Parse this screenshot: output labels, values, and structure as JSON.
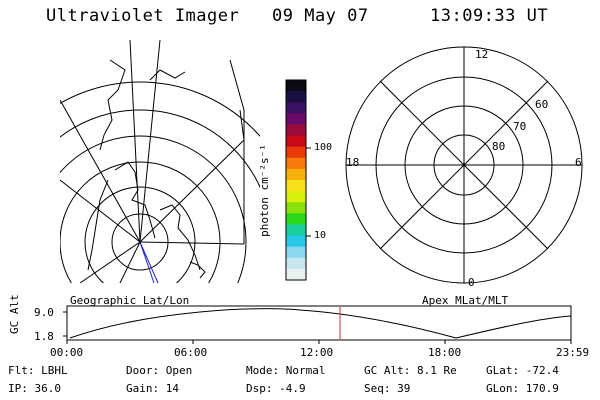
{
  "header": {
    "title": "Ultraviolet Imager",
    "date": "09 May 07",
    "time": "13:09:33 UT"
  },
  "colorbar": {
    "unit_label": "photon cm⁻²s⁻¹",
    "ticks": [
      "100",
      "10"
    ],
    "colors": [
      "#0a0a14",
      "#1a1040",
      "#3a1060",
      "#6a0a6a",
      "#9a0a3a",
      "#c80a1a",
      "#e83a0a",
      "#f87a0a",
      "#f8b00a",
      "#f8e01a",
      "#d8f00a",
      "#8ae00a",
      "#2ad81a",
      "#1ad0a0",
      "#2ac8e8",
      "#8ad8f0",
      "#c8e8f0",
      "#e8f0f0"
    ]
  },
  "left_map": {
    "caption": "Geographic Lat/Lon"
  },
  "right_map": {
    "caption": "Apex MLat/MLT",
    "mlt_labels": {
      "top": "12",
      "left": "18",
      "right": "6",
      "bottom": "0"
    },
    "lat_labels": [
      "60",
      "70",
      "80"
    ]
  },
  "altitude_plot": {
    "ylabel": "GC Alt",
    "yticks": [
      "9.0",
      "1.8"
    ],
    "xticks": [
      "00:00",
      "06:00",
      "12:00",
      "18:00",
      "23:59"
    ],
    "marker_color": "#d03030"
  },
  "info": {
    "filter": "Flt: LBHL",
    "door": "Door: Open",
    "mode": "Mode: Normal",
    "gc_alt": "GC Alt: 8.1 Re",
    "glat": "GLat: -72.4",
    "ip": "IP: 36.0",
    "gain": "Gain: 14",
    "dsp": "Dsp:   -4.9",
    "seq": "Seq: 39",
    "glon": "GLon: 170.9"
  }
}
